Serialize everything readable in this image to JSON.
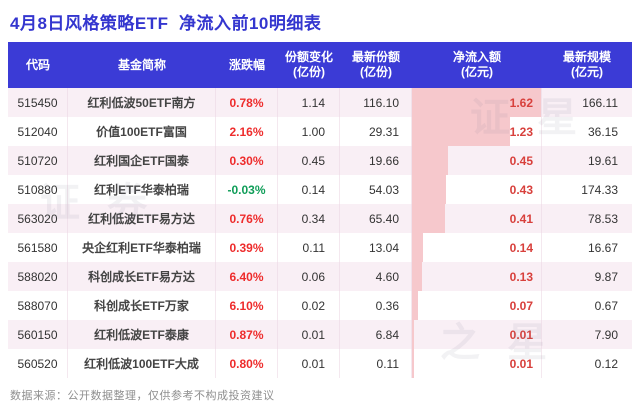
{
  "title": "4月8日风格策略ETF  净流入前10明细表",
  "footer": "数据来源：公开数据整理，仅供参考不构成投资建议",
  "watermark": {
    "text1": "证 星",
    "text2": "证 券",
    "text3": "之 星"
  },
  "colors": {
    "title": "#3436cf",
    "header_bg": "#3b3bd6",
    "alt_row_bg": "#f9eff5",
    "up_red": "#ee2c2c",
    "down_green": "#0f9d58",
    "inflow_text": "#d8403c",
    "inflow_bar": "#f6c8cc"
  },
  "table": {
    "max_inflow": 1.62,
    "headers": [
      {
        "key": "code",
        "line1": "代码",
        "line2": ""
      },
      {
        "key": "name",
        "line1": "基金简称",
        "line2": ""
      },
      {
        "key": "change",
        "line1": "涨跌幅",
        "line2": ""
      },
      {
        "key": "share-change",
        "line1": "份额变化",
        "line2": "(亿份)"
      },
      {
        "key": "latest-share",
        "line1": "最新份额",
        "line2": "(亿份)"
      },
      {
        "key": "net-inflow",
        "line1": "净流入额",
        "line2": "(亿元)"
      },
      {
        "key": "scale",
        "line1": "最新规模",
        "line2": "(亿元)"
      }
    ],
    "rows": [
      {
        "code": "515450",
        "name": "红利低波50ETF南方",
        "change": "0.78%",
        "share_change": "1.14",
        "latest_share": "116.10",
        "net_inflow": "1.62",
        "scale": "166.11"
      },
      {
        "code": "512040",
        "name": "价值100ETF富国",
        "change": "2.16%",
        "share_change": "1.00",
        "latest_share": "29.31",
        "net_inflow": "1.23",
        "scale": "36.15"
      },
      {
        "code": "510720",
        "name": "红利国企ETF国泰",
        "change": "0.30%",
        "share_change": "0.45",
        "latest_share": "19.66",
        "net_inflow": "0.45",
        "scale": "19.61"
      },
      {
        "code": "510880",
        "name": "红利ETF华泰柏瑞",
        "change": "-0.03%",
        "share_change": "0.14",
        "latest_share": "54.03",
        "net_inflow": "0.43",
        "scale": "174.33"
      },
      {
        "code": "563020",
        "name": "红利低波ETF易方达",
        "change": "0.76%",
        "share_change": "0.34",
        "latest_share": "65.40",
        "net_inflow": "0.41",
        "scale": "78.53"
      },
      {
        "code": "561580",
        "name": "央企红利ETF华泰柏瑞",
        "change": "0.39%",
        "share_change": "0.11",
        "latest_share": "13.04",
        "net_inflow": "0.14",
        "scale": "16.67"
      },
      {
        "code": "588020",
        "name": "科创成长ETF易方达",
        "change": "6.40%",
        "share_change": "0.06",
        "latest_share": "4.60",
        "net_inflow": "0.13",
        "scale": "9.87"
      },
      {
        "code": "588070",
        "name": "科创成长ETF万家",
        "change": "6.10%",
        "share_change": "0.02",
        "latest_share": "0.36",
        "net_inflow": "0.07",
        "scale": "0.67"
      },
      {
        "code": "560150",
        "name": "红利低波ETF泰康",
        "change": "0.87%",
        "share_change": "0.01",
        "latest_share": "6.84",
        "net_inflow": "0.01",
        "scale": "7.90"
      },
      {
        "code": "560520",
        "name": "红利低波100ETF大成",
        "change": "0.80%",
        "share_change": "0.01",
        "latest_share": "0.11",
        "net_inflow": "0.01",
        "scale": "0.12"
      }
    ]
  },
  "chart_data": {
    "type": "table",
    "title": "4月8日风格策略ETF  净流入前10明细表",
    "columns": [
      "代码",
      "基金简称",
      "涨跌幅",
      "份额变化(亿份)",
      "最新份额(亿份)",
      "净流入额(亿元)",
      "最新规模(亿元)"
    ],
    "rows": [
      [
        "515450",
        "红利低波50ETF南方",
        "0.78%",
        1.14,
        116.1,
        1.62,
        166.11
      ],
      [
        "512040",
        "价值100ETF富国",
        "2.16%",
        1.0,
        29.31,
        1.23,
        36.15
      ],
      [
        "510720",
        "红利国企ETF国泰",
        "0.30%",
        0.45,
        19.66,
        0.45,
        19.61
      ],
      [
        "510880",
        "红利ETF华泰柏瑞",
        "-0.03%",
        0.14,
        54.03,
        0.43,
        174.33
      ],
      [
        "563020",
        "红利低波ETF易方达",
        "0.76%",
        0.34,
        65.4,
        0.41,
        78.53
      ],
      [
        "561580",
        "央企红利ETF华泰柏瑞",
        "0.39%",
        0.11,
        13.04,
        0.14,
        16.67
      ],
      [
        "588020",
        "科创成长ETF易方达",
        "6.40%",
        0.06,
        4.6,
        0.13,
        9.87
      ],
      [
        "588070",
        "科创成长ETF万家",
        "6.10%",
        0.02,
        0.36,
        0.07,
        0.67
      ],
      [
        "560150",
        "红利低波ETF泰康",
        "0.87%",
        0.01,
        6.84,
        0.01,
        7.9
      ],
      [
        "560520",
        "红利低波100ETF大成",
        "0.80%",
        0.01,
        0.11,
        0.01,
        0.12
      ]
    ],
    "bar_column": "净流入额(亿元)",
    "bar_max": 1.62,
    "notes": "净流入额 column rendered with proportional pink data bars; rows sorted descending by net inflow"
  }
}
